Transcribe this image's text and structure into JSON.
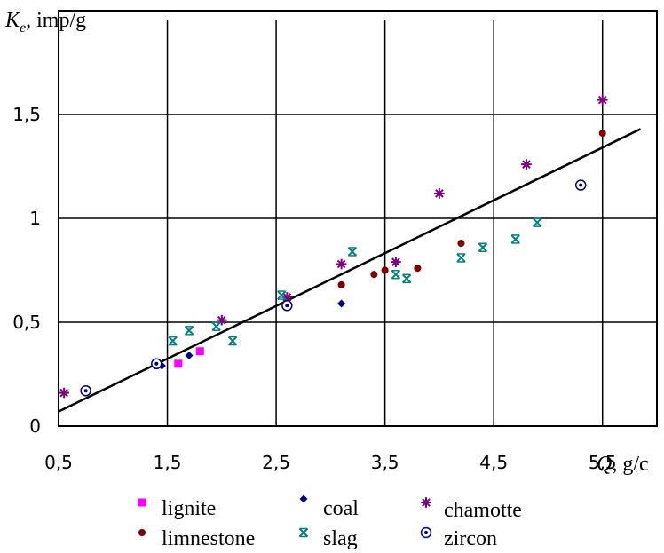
{
  "chart_data": {
    "type": "scatter",
    "title": "",
    "xlabel": {
      "symbol": "Q",
      "unit": ", g/c"
    },
    "ylabel": {
      "symbol": "K",
      "subscript": "e",
      "unit": ", imp/g"
    },
    "xlim": [
      0.5,
      6
    ],
    "ylim": [
      0,
      2
    ],
    "x_ticks": [
      0.5,
      1.5,
      2.5,
      3.5,
      4.5,
      5.5
    ],
    "x_tick_labels": [
      "0,5",
      "1,5",
      "2,5",
      "3,5",
      "4,5",
      "5,5"
    ],
    "y_ticks": [
      0,
      0.5,
      1,
      1.5
    ],
    "y_tick_labels": [
      "0",
      "0,5",
      "1",
      "1,5"
    ],
    "grid": true,
    "legend_position": "bottom",
    "series": [
      {
        "name": "lignite",
        "marker": "square",
        "color": "#ff00ff",
        "points": [
          [
            1.6,
            0.3
          ],
          [
            1.8,
            0.36
          ]
        ]
      },
      {
        "name": "coal",
        "marker": "diamond",
        "color": "#000080",
        "points": [
          [
            1.45,
            0.29
          ],
          [
            1.7,
            0.34
          ],
          [
            3.1,
            0.59
          ]
        ]
      },
      {
        "name": "chamotte",
        "marker": "star",
        "color": "#800080",
        "points": [
          [
            0.55,
            0.16
          ],
          [
            2.0,
            0.51
          ],
          [
            2.6,
            0.62
          ],
          [
            3.1,
            0.78
          ],
          [
            3.6,
            0.79
          ],
          [
            4.0,
            1.12
          ],
          [
            4.8,
            1.26
          ],
          [
            5.5,
            1.57
          ]
        ]
      },
      {
        "name": "limnestone",
        "marker": "circle",
        "color": "#800000",
        "points": [
          [
            3.1,
            0.68
          ],
          [
            3.4,
            0.73
          ],
          [
            3.5,
            0.75
          ],
          [
            3.8,
            0.76
          ],
          [
            4.2,
            0.88
          ],
          [
            5.5,
            1.41
          ]
        ]
      },
      {
        "name": "slag",
        "marker": "cross",
        "color": "#008080",
        "points": [
          [
            1.55,
            0.41
          ],
          [
            1.7,
            0.46
          ],
          [
            1.95,
            0.48
          ],
          [
            2.1,
            0.41
          ],
          [
            2.55,
            0.63
          ],
          [
            3.2,
            0.84
          ],
          [
            3.6,
            0.73
          ],
          [
            3.7,
            0.71
          ],
          [
            4.2,
            0.81
          ],
          [
            4.4,
            0.86
          ],
          [
            4.7,
            0.9
          ],
          [
            4.9,
            0.98
          ]
        ]
      },
      {
        "name": "zircon",
        "marker": "ring",
        "color": "#000080",
        "points": [
          [
            0.75,
            0.17
          ],
          [
            1.4,
            0.3
          ],
          [
            2.6,
            0.58
          ],
          [
            5.3,
            1.16
          ]
        ]
      }
    ],
    "trendline": {
      "x": [
        0.5,
        5.85
      ],
      "y": [
        0.07,
        1.43
      ],
      "color": "#000000"
    },
    "legend_rows": [
      [
        "lignite",
        "coal",
        "chamotte"
      ],
      [
        "limnestone",
        "slag",
        "zircon"
      ]
    ]
  }
}
